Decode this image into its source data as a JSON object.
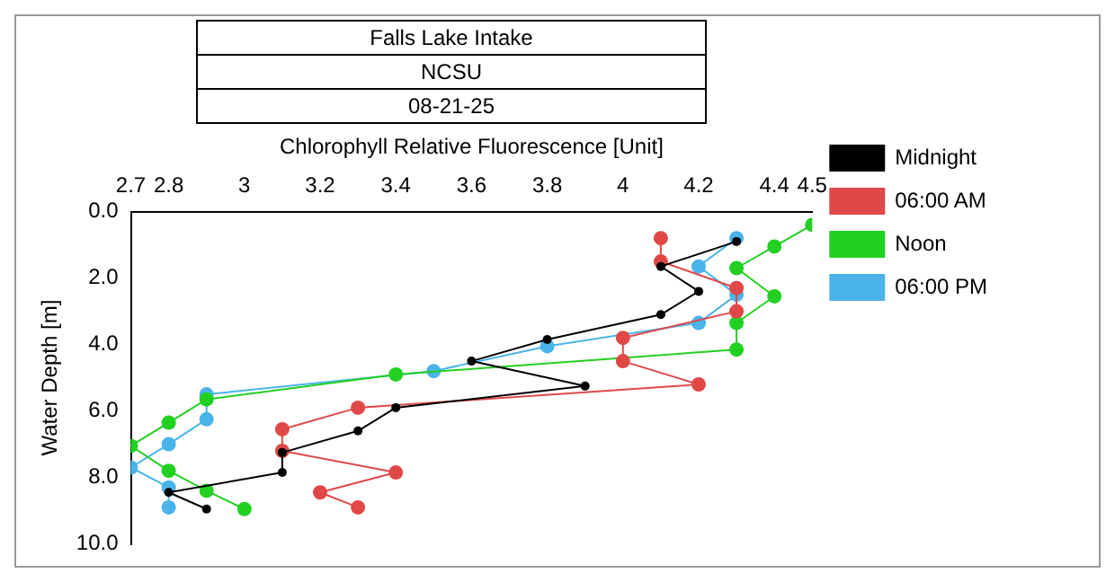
{
  "chart_data": {
    "type": "line",
    "title": "Falls Lake Intake",
    "subtitle": "NCSU",
    "annotations": [
      "08-21-25"
    ],
    "xlabel": "Chlorophyll Relative Fluorescence [Unit]",
    "ylabel": "Water Depth [m]",
    "xlim": [
      2.7,
      4.5
    ],
    "xticks": [
      2.7,
      2.8,
      3,
      3.2,
      3.4,
      3.6,
      3.8,
      4,
      4.2,
      4.4,
      4.5
    ],
    "ylim": [
      10,
      0
    ],
    "yticks": [
      {
        "value": 0,
        "label": "0.0"
      },
      {
        "value": 2,
        "label": "2.0"
      },
      {
        "value": 4,
        "label": "4.0"
      },
      {
        "value": 6,
        "label": "6.0"
      },
      {
        "value": 8,
        "label": "8.0"
      },
      {
        "value": 10,
        "label": "10.0"
      }
    ],
    "grid": false,
    "legend": "top right",
    "marker": "circle",
    "line_style": "solid",
    "series": [
      {
        "name": "Midnight",
        "color": "#000000",
        "x": [
          4.3,
          4.1,
          4.2,
          4.1,
          3.8,
          3.6,
          3.9,
          3.4,
          3.3,
          3.1,
          3.1,
          2.8,
          2.9
        ],
        "values": [
          0.9,
          1.65,
          2.4,
          3.1,
          3.85,
          4.5,
          5.25,
          5.9,
          6.6,
          7.25,
          7.85,
          8.45,
          8.95
        ]
      },
      {
        "name": "06:00 AM",
        "color": "#e04848",
        "x": [
          4.1,
          4.1,
          4.3,
          4.3,
          4.0,
          4.0,
          4.2,
          3.3,
          3.1,
          3.1,
          3.4,
          3.2,
          3.3
        ],
        "values": [
          0.8,
          1.5,
          2.3,
          3.0,
          3.8,
          4.5,
          5.2,
          5.9,
          6.55,
          7.2,
          7.85,
          8.45,
          8.9
        ]
      },
      {
        "name": "Noon",
        "color": "#22d022",
        "x": [
          4.5,
          4.4,
          4.3,
          4.4,
          4.3,
          4.3,
          3.4,
          2.9,
          2.8,
          2.7,
          2.8,
          2.9,
          3.0
        ],
        "values": [
          0.4,
          1.05,
          1.7,
          2.55,
          3.35,
          4.15,
          4.9,
          5.65,
          6.35,
          7.05,
          7.8,
          8.4,
          8.95
        ]
      },
      {
        "name": "06:00 PM",
        "color": "#4ab4ea",
        "x": [
          4.3,
          4.2,
          4.3,
          4.2,
          3.8,
          3.5,
          2.9,
          2.9,
          2.8,
          2.7,
          2.8,
          2.8
        ],
        "values": [
          0.8,
          1.65,
          2.5,
          3.35,
          4.05,
          4.8,
          5.5,
          6.25,
          7.0,
          7.7,
          8.3,
          8.9
        ]
      }
    ]
  }
}
